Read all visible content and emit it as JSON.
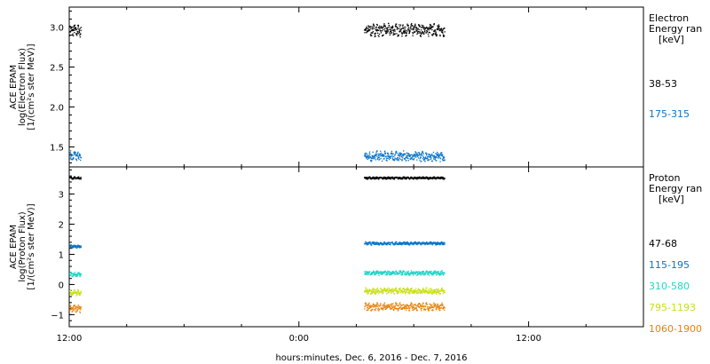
{
  "chart_data": [
    {
      "type": "scatter",
      "panel": "electron",
      "ylabel_lines": [
        "ACE EPAM",
        "log(Electron Flux)",
        "[1/(cm²s ster MeV)]"
      ],
      "legend_title": [
        "Electron",
        "Energy ran",
        "[keV]"
      ],
      "ylim": [
        1.25,
        3.25
      ],
      "yticks": [
        1.5,
        2.0,
        2.5,
        3.0
      ],
      "ytick_labels": [
        "1.5",
        "2.0",
        "2.5",
        "3.0"
      ],
      "series": [
        {
          "name": "38-53",
          "color": "#000000",
          "segments": [
            [
              0.0,
              0.6,
              2.96
            ],
            [
              15.4,
              19.6,
              2.97
            ]
          ],
          "spread": 0.06
        },
        {
          "name": "175-315",
          "color": "#0a74c8",
          "segments": [
            [
              0.0,
              0.6,
              1.39
            ],
            [
              15.4,
              19.6,
              1.39
            ]
          ],
          "spread": 0.05
        }
      ]
    },
    {
      "type": "scatter",
      "panel": "proton",
      "ylabel_lines": [
        "ACE EPAM",
        "log(Proton Flux)",
        "[1/(cm²s ster MeV)]"
      ],
      "legend_title": [
        "Proton",
        "Energy ran",
        "[keV]"
      ],
      "ylim": [
        -1.4,
        3.9
      ],
      "yticks": [
        -1,
        0,
        1,
        2,
        3
      ],
      "ytick_labels": [
        "−1",
        "0",
        "1",
        "2",
        "3"
      ],
      "series": [
        {
          "name": "47-68",
          "color": "#000000",
          "segments": [
            [
              0.0,
              0.6,
              3.55
            ],
            [
              15.4,
              19.6,
              3.55
            ]
          ],
          "spread": 0.03
        },
        {
          "name": "115-195",
          "color": "#0a74c8",
          "segments": [
            [
              0.0,
              0.6,
              1.28
            ],
            [
              15.4,
              19.6,
              1.38
            ]
          ],
          "spread": 0.04
        },
        {
          "name": "310-580",
          "color": "#1fd6c7",
          "segments": [
            [
              0.0,
              0.6,
              0.35
            ],
            [
              15.4,
              19.6,
              0.4
            ]
          ],
          "spread": 0.06
        },
        {
          "name": "795-1193",
          "color": "#c9e012",
          "segments": [
            [
              0.0,
              0.6,
              -0.25
            ],
            [
              15.4,
              19.6,
              -0.2
            ]
          ],
          "spread": 0.08
        },
        {
          "name": "1060-1900",
          "color": "#e8820c",
          "segments": [
            [
              0.0,
              0.6,
              -0.78
            ],
            [
              15.4,
              19.6,
              -0.72
            ]
          ],
          "spread": 0.1
        }
      ]
    }
  ],
  "x_axis": {
    "range_hours": [
      0,
      30
    ],
    "ticks": [
      0,
      12,
      24
    ],
    "tick_labels": [
      "12:00",
      "0:00",
      "12:00"
    ],
    "minor_step_hours": 3,
    "label": "hours:minutes, Dec.  6, 2016 - Dec.  7, 2016"
  }
}
